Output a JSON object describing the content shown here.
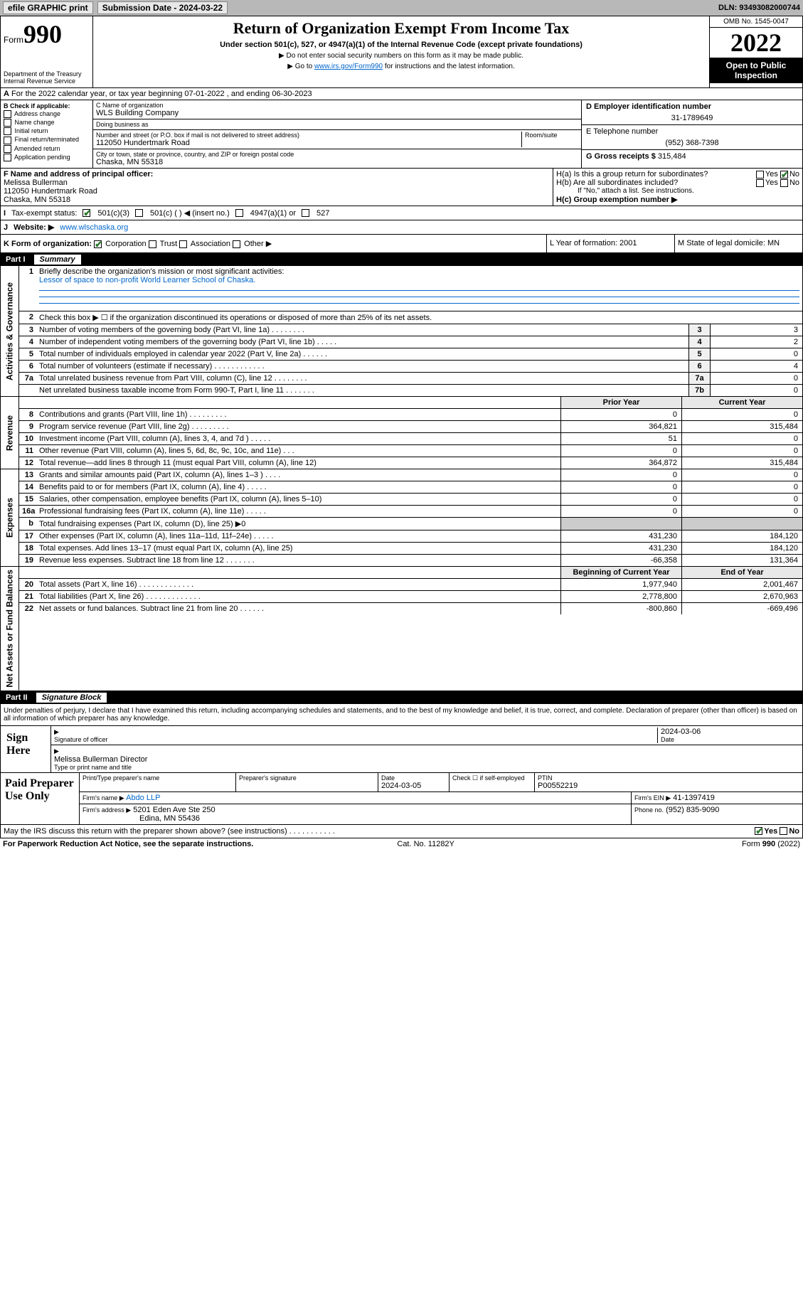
{
  "topbar": {
    "efile": "efile GRAPHIC print",
    "submission_label": "Submission Date - 2024-03-22",
    "dln": "DLN: 93493082000744"
  },
  "header": {
    "form_word": "Form",
    "form_num": "990",
    "title": "Return of Organization Exempt From Income Tax",
    "sub": "Under section 501(c), 527, or 4947(a)(1) of the Internal Revenue Code (except private foundations)",
    "ssn": "▶ Do not enter social security numbers on this form as it may be made public.",
    "goto_pre": "▶ Go to ",
    "goto_link": "www.irs.gov/Form990",
    "goto_post": " for instructions and the latest information.",
    "dept": "Department of the Treasury\nInternal Revenue Service",
    "omb": "OMB No. 1545-0047",
    "year": "2022",
    "open": "Open to Public Inspection"
  },
  "line_a": "For the 2022 calendar year, or tax year beginning 07-01-2022   , and ending 06-30-2023",
  "b": {
    "label": "B Check if applicable:",
    "items": [
      "Address change",
      "Name change",
      "Initial return",
      "Final return/terminated",
      "Amended return",
      "Application pending"
    ]
  },
  "c": {
    "name_label": "C Name of organization",
    "name": "WLS Building Company",
    "dba_label": "Doing business as",
    "dba": "",
    "addr_label": "Number and street (or P.O. box if mail is not delivered to street address)",
    "room_label": "Room/suite",
    "addr": "112050 Hundertmark Road",
    "city_label": "City or town, state or province, country, and ZIP or foreign postal code",
    "city": "Chaska, MN  55318"
  },
  "d": {
    "label": "D Employer identification number",
    "val": "31-1789649"
  },
  "e": {
    "label": "E Telephone number",
    "val": "(952) 368-7398"
  },
  "g": {
    "label": "G Gross receipts $",
    "val": "315,484"
  },
  "f": {
    "label": "F  Name and address of principal officer:",
    "name": "Melissa Bullerman",
    "addr1": "112050 Hundertmark Road",
    "addr2": "Chaska, MN  55318"
  },
  "h": {
    "a": "H(a)  Is this a group return for subordinates?",
    "b": "H(b)  Are all subordinates included?",
    "b_note": "If \"No,\" attach a list. See instructions.",
    "c": "H(c)  Group exemption number ▶",
    "yes": "Yes",
    "no": "No"
  },
  "i": {
    "label": "Tax-exempt status:",
    "opts": [
      "501(c)(3)",
      "501(c) (  ) ◀ (insert no.)",
      "4947(a)(1) or",
      "527"
    ]
  },
  "j": {
    "label": "Website: ▶",
    "val": "www.wlschaska.org"
  },
  "k": {
    "label": "K Form of organization:",
    "opts": [
      "Corporation",
      "Trust",
      "Association",
      "Other ▶"
    ],
    "l": "L Year of formation: 2001",
    "m": "M State of legal domicile: MN"
  },
  "part1": {
    "title": "Part I",
    "name": "Summary"
  },
  "summary": {
    "q1": "Briefly describe the organization's mission or most significant activities:",
    "mission": "Lessor of space to non-profit World Learner School of Chaska.",
    "q2": "Check this box ▶ ☐  if the organization discontinued its operations or disposed of more than 25% of its net assets.",
    "rows_gov": [
      {
        "n": "3",
        "d": "Number of voting members of the governing body (Part VI, line 1a)   .    .    .    .    .    .    .    .",
        "b": "3",
        "v": "3"
      },
      {
        "n": "4",
        "d": "Number of independent voting members of the governing body (Part VI, line 1b)   .    .    .    .    .",
        "b": "4",
        "v": "2"
      },
      {
        "n": "5",
        "d": "Total number of individuals employed in calendar year 2022 (Part V, line 2a)   .    .    .    .    .    .",
        "b": "5",
        "v": "0"
      },
      {
        "n": "6",
        "d": "Total number of volunteers (estimate if necessary)   .    .    .    .    .    .    .    .    .    .    .    .",
        "b": "6",
        "v": "4"
      },
      {
        "n": "7a",
        "d": "Total unrelated business revenue from Part VIII, column (C), line 12   .    .    .    .    .    .    .    .",
        "b": "7a",
        "v": "0"
      },
      {
        "n": "",
        "d": "Net unrelated business taxable income from Form 990-T, Part I, line 11   .    .    .    .    .    .    .",
        "b": "7b",
        "v": "0"
      }
    ],
    "col_prior": "Prior Year",
    "col_current": "Current Year",
    "rows_rev": [
      {
        "n": "8",
        "d": "Contributions and grants (Part VIII, line 1h)   .    .    .    .    .    .    .    .    .",
        "p": "0",
        "c": "0"
      },
      {
        "n": "9",
        "d": "Program service revenue (Part VIII, line 2g)   .    .    .    .    .    .    .    .    .",
        "p": "364,821",
        "c": "315,484"
      },
      {
        "n": "10",
        "d": "Investment income (Part VIII, column (A), lines 3, 4, and 7d )   .    .    .    .    .",
        "p": "51",
        "c": "0"
      },
      {
        "n": "11",
        "d": "Other revenue (Part VIII, column (A), lines 5, 6d, 8c, 9c, 10c, and 11e)   .    .    .",
        "p": "0",
        "c": "0"
      },
      {
        "n": "12",
        "d": "Total revenue—add lines 8 through 11 (must equal Part VIII, column (A), line 12)",
        "p": "364,872",
        "c": "315,484"
      }
    ],
    "rows_exp": [
      {
        "n": "13",
        "d": "Grants and similar amounts paid (Part IX, column (A), lines 1–3 )   .    .    .    .",
        "p": "0",
        "c": "0"
      },
      {
        "n": "14",
        "d": "Benefits paid to or for members (Part IX, column (A), line 4)   .    .    .    .    .",
        "p": "0",
        "c": "0"
      },
      {
        "n": "15",
        "d": "Salaries, other compensation, employee benefits (Part IX, column (A), lines 5–10)",
        "p": "0",
        "c": "0"
      },
      {
        "n": "16a",
        "d": "Professional fundraising fees (Part IX, column (A), line 11e)   .    .    .    .    .",
        "p": "0",
        "c": "0"
      },
      {
        "n": "b",
        "d": "Total fundraising expenses (Part IX, column (D), line 25) ▶0",
        "p": "",
        "c": "",
        "shade": true
      },
      {
        "n": "17",
        "d": "Other expenses (Part IX, column (A), lines 11a–11d, 11f–24e)   .    .    .    .    .",
        "p": "431,230",
        "c": "184,120"
      },
      {
        "n": "18",
        "d": "Total expenses. Add lines 13–17 (must equal Part IX, column (A), line 25)",
        "p": "431,230",
        "c": "184,120"
      },
      {
        "n": "19",
        "d": "Revenue less expenses. Subtract line 18 from line 12   .    .    .    .    .    .    .",
        "p": "-66,358",
        "c": "131,364"
      }
    ],
    "col_begin": "Beginning of Current Year",
    "col_end": "End of Year",
    "rows_net": [
      {
        "n": "20",
        "d": "Total assets (Part X, line 16)   .    .    .    .    .    .    .    .    .    .    .    .    .",
        "p": "1,977,940",
        "c": "2,001,467"
      },
      {
        "n": "21",
        "d": "Total liabilities (Part X, line 26)   .    .    .    .    .    .    .    .    .    .    .    .    .",
        "p": "2,778,800",
        "c": "2,670,963"
      },
      {
        "n": "22",
        "d": "Net assets or fund balances. Subtract line 21 from line 20   .    .    .    .    .    .",
        "p": "-800,860",
        "c": "-669,496"
      }
    ]
  },
  "sidebars": {
    "gov": "Activities & Governance",
    "rev": "Revenue",
    "exp": "Expenses",
    "net": "Net Assets or Fund Balances"
  },
  "part2": {
    "title": "Part II",
    "name": "Signature Block"
  },
  "sig": {
    "decl": "Under penalties of perjury, I declare that I have examined this return, including accompanying schedules and statements, and to the best of my knowledge and belief, it is true, correct, and complete. Declaration of preparer (other than officer) is based on all information of which preparer has any knowledge.",
    "sign_here": "Sign Here",
    "sig_officer": "Signature of officer",
    "date_label": "Date",
    "date": "2024-03-06",
    "name_title": "Melissa Bullerman  Director",
    "type_label": "Type or print name and title"
  },
  "paid": {
    "label": "Paid Preparer Use Only",
    "h_name": "Print/Type preparer's name",
    "h_sig": "Preparer's signature",
    "h_date": "Date",
    "date": "2024-03-05",
    "h_check": "Check ☐ if self-employed",
    "h_ptin": "PTIN",
    "ptin": "P00552219",
    "firm_name_l": "Firm's name    ▶",
    "firm_name": "Abdo LLP",
    "firm_ein_l": "Firm's EIN ▶",
    "firm_ein": "41-1397419",
    "firm_addr_l": "Firm's address ▶",
    "firm_addr1": "5201 Eden Ave Ste 250",
    "firm_addr2": "Edina, MN  55436",
    "phone_l": "Phone no.",
    "phone": "(952) 835-9090"
  },
  "discuss": "May the IRS discuss this return with the preparer shown above? (see instructions)   .    .    .    .    .    .    .    .    .    .    .",
  "footer": {
    "left": "For Paperwork Reduction Act Notice, see the separate instructions.",
    "mid": "Cat. No. 11282Y",
    "right": "Form 990 (2022)"
  }
}
